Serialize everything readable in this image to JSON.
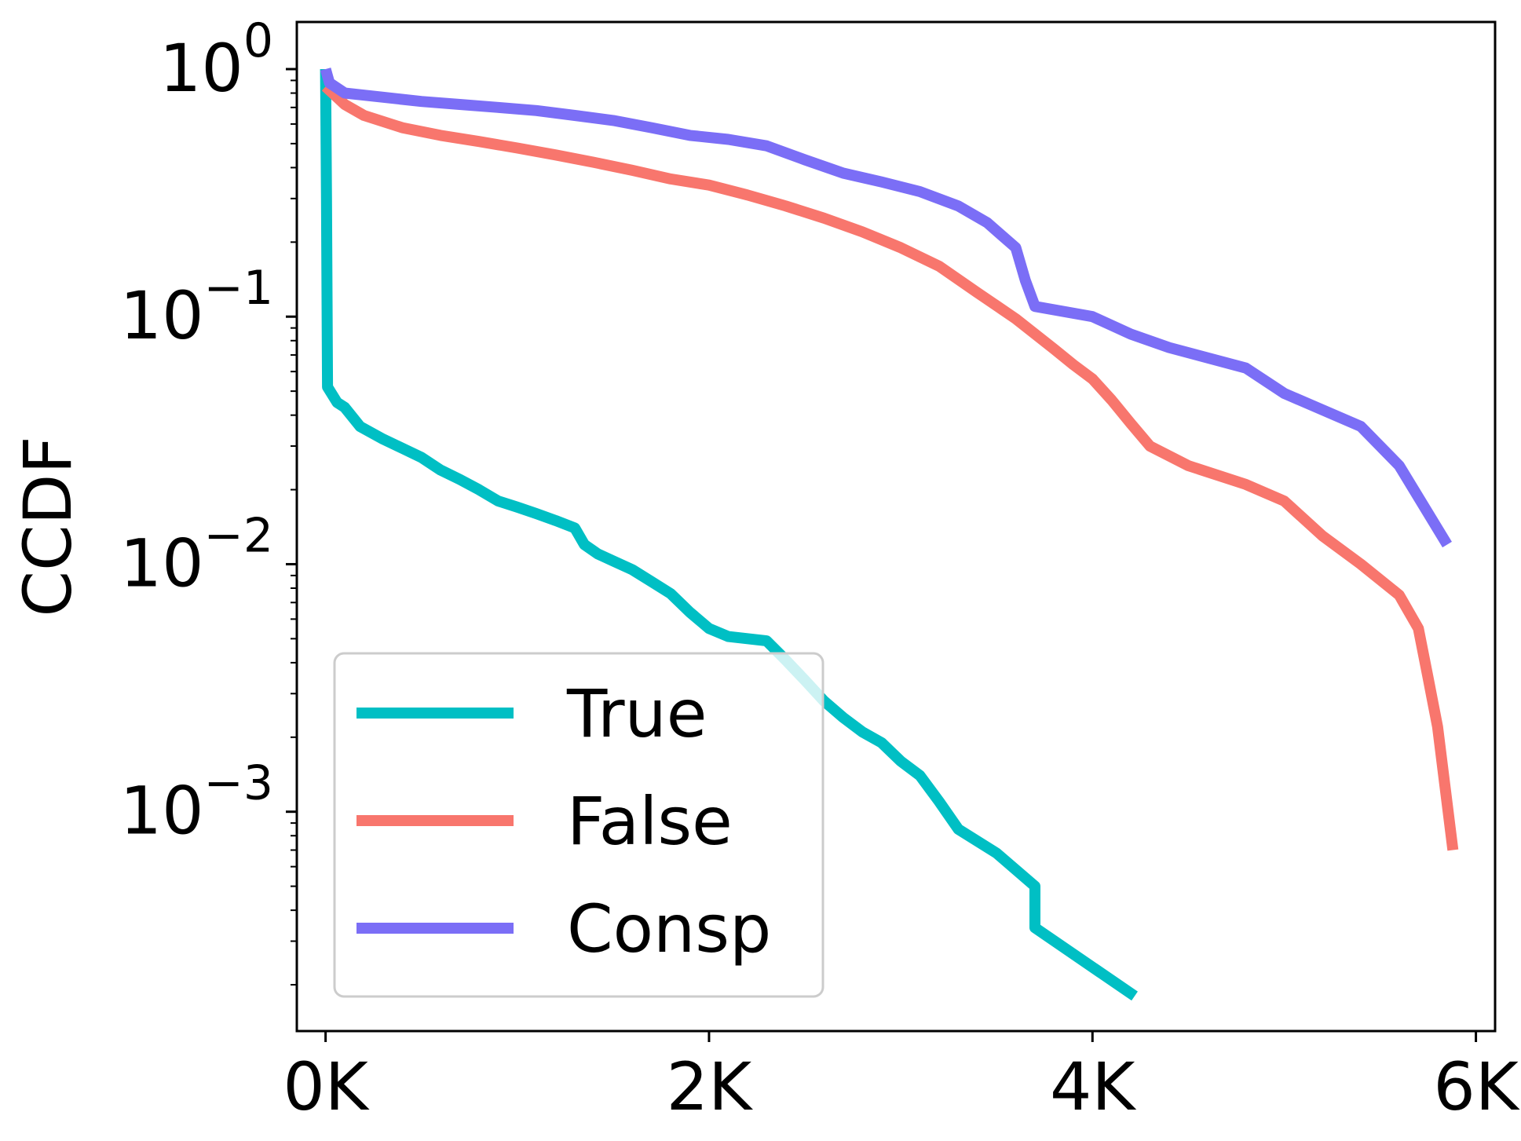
{
  "chart_data": {
    "type": "line",
    "title": "",
    "xlabel": "",
    "ylabel": "CCDF",
    "yscale": "log",
    "xlim": [
      -150,
      6100
    ],
    "ylim": [
      0.00013,
      1.55
    ],
    "x_ticks": [
      {
        "value": 0,
        "label": "0K"
      },
      {
        "value": 2000,
        "label": "2K"
      },
      {
        "value": 4000,
        "label": "4K"
      },
      {
        "value": 6000,
        "label": "6K"
      }
    ],
    "y_ticks": [
      {
        "value": 1,
        "base": "10",
        "exp": "0"
      },
      {
        "value": 0.1,
        "base": "10",
        "exp": "−1"
      },
      {
        "value": 0.01,
        "base": "10",
        "exp": "−2"
      },
      {
        "value": 0.001,
        "base": "10",
        "exp": "−3"
      }
    ],
    "grid": false,
    "legend_position": "lower-left",
    "series": [
      {
        "name": "True",
        "color": "#00BFC4",
        "points": [
          [
            0,
            1.0
          ],
          [
            5,
            0.3
          ],
          [
            10,
            0.052
          ],
          [
            60,
            0.045
          ],
          [
            100,
            0.043
          ],
          [
            180,
            0.036
          ],
          [
            300,
            0.032
          ],
          [
            500,
            0.027
          ],
          [
            600,
            0.024
          ],
          [
            700,
            0.022
          ],
          [
            800,
            0.02
          ],
          [
            900,
            0.018
          ],
          [
            1000,
            0.017
          ],
          [
            1100,
            0.016
          ],
          [
            1200,
            0.015
          ],
          [
            1300,
            0.014
          ],
          [
            1350,
            0.012
          ],
          [
            1420,
            0.011
          ],
          [
            1500,
            0.0103
          ],
          [
            1600,
            0.0095
          ],
          [
            1700,
            0.0085
          ],
          [
            1800,
            0.0076
          ],
          [
            1900,
            0.0064
          ],
          [
            2000,
            0.0055
          ],
          [
            2100,
            0.0051
          ],
          [
            2300,
            0.0049
          ],
          [
            2400,
            0.0041
          ],
          [
            2500,
            0.0034
          ],
          [
            2600,
            0.0028
          ],
          [
            2700,
            0.0024
          ],
          [
            2800,
            0.0021
          ],
          [
            2900,
            0.0019
          ],
          [
            3000,
            0.0016
          ],
          [
            3100,
            0.0014
          ],
          [
            3200,
            0.0011
          ],
          [
            3300,
            0.00085
          ],
          [
            3500,
            0.00068
          ],
          [
            3700,
            0.0005
          ],
          [
            3700,
            0.00034
          ],
          [
            4220,
            0.00018
          ]
        ]
      },
      {
        "name": "False",
        "color": "#F8766D",
        "points": [
          [
            0,
            0.85
          ],
          [
            100,
            0.72
          ],
          [
            200,
            0.65
          ],
          [
            400,
            0.58
          ],
          [
            600,
            0.54
          ],
          [
            800,
            0.51
          ],
          [
            1000,
            0.48
          ],
          [
            1200,
            0.45
          ],
          [
            1400,
            0.42
          ],
          [
            1600,
            0.39
          ],
          [
            1800,
            0.36
          ],
          [
            2000,
            0.34
          ],
          [
            2200,
            0.31
          ],
          [
            2400,
            0.28
          ],
          [
            2600,
            0.25
          ],
          [
            2800,
            0.22
          ],
          [
            3000,
            0.19
          ],
          [
            3200,
            0.16
          ],
          [
            3400,
            0.125
          ],
          [
            3600,
            0.098
          ],
          [
            3800,
            0.074
          ],
          [
            3900,
            0.064
          ],
          [
            4000,
            0.056
          ],
          [
            4100,
            0.046
          ],
          [
            4200,
            0.037
          ],
          [
            4300,
            0.03
          ],
          [
            4500,
            0.025
          ],
          [
            4800,
            0.021
          ],
          [
            5000,
            0.018
          ],
          [
            5200,
            0.013
          ],
          [
            5400,
            0.01
          ],
          [
            5600,
            0.0075
          ],
          [
            5700,
            0.0055
          ],
          [
            5750,
            0.0035
          ],
          [
            5800,
            0.0022
          ],
          [
            5880,
            0.0007
          ]
        ]
      },
      {
        "name": "Consp",
        "color": "#7B6EF6",
        "points": [
          [
            0,
            1.0
          ],
          [
            20,
            0.88
          ],
          [
            100,
            0.8
          ],
          [
            300,
            0.77
          ],
          [
            500,
            0.74
          ],
          [
            700,
            0.72
          ],
          [
            900,
            0.7
          ],
          [
            1100,
            0.68
          ],
          [
            1300,
            0.65
          ],
          [
            1500,
            0.62
          ],
          [
            1700,
            0.58
          ],
          [
            1900,
            0.54
          ],
          [
            2100,
            0.52
          ],
          [
            2300,
            0.49
          ],
          [
            2500,
            0.43
          ],
          [
            2700,
            0.38
          ],
          [
            2900,
            0.35
          ],
          [
            3100,
            0.32
          ],
          [
            3300,
            0.28
          ],
          [
            3450,
            0.24
          ],
          [
            3600,
            0.19
          ],
          [
            3650,
            0.14
          ],
          [
            3700,
            0.11
          ],
          [
            4000,
            0.1
          ],
          [
            4200,
            0.085
          ],
          [
            4400,
            0.075
          ],
          [
            4800,
            0.062
          ],
          [
            5000,
            0.049
          ],
          [
            5400,
            0.036
          ],
          [
            5600,
            0.025
          ],
          [
            5850,
            0.012
          ]
        ]
      }
    ]
  }
}
